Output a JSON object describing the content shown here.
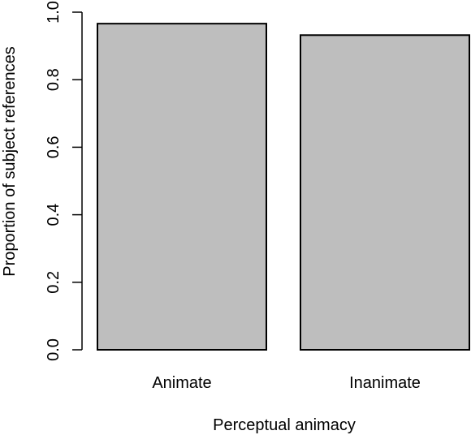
{
  "chart_data": {
    "type": "bar",
    "categories": [
      "Animate",
      "Inanimate"
    ],
    "values": [
      0.966,
      0.932
    ],
    "title": "",
    "xlabel": "Perceptual animacy",
    "ylabel": "Proportion of subject references",
    "ylim": [
      0,
      1
    ],
    "yticks": [
      "0.0",
      "0.2",
      "0.4",
      "0.6",
      "0.8",
      "1.0"
    ],
    "bar_fill": "#bebebe",
    "bar_stroke": "#000000",
    "grid": false,
    "legend": "none"
  }
}
